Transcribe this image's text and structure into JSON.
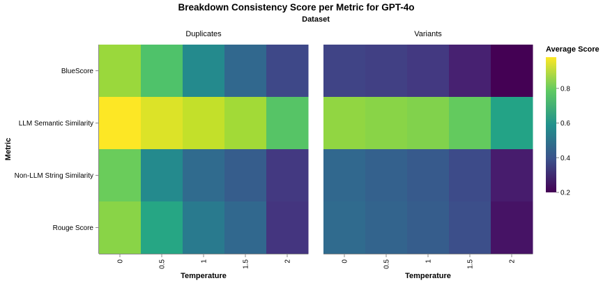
{
  "chart_data": {
    "type": "heatmap",
    "title": "Breakdown Consistency Score per Metric for GPT-4o",
    "column_header": "Dataset",
    "xlabel": "Temperature",
    "ylabel": "Metric",
    "x": [
      "0",
      "0.5",
      "1",
      "1.5",
      "2"
    ],
    "y": [
      "BlueScore",
      "LLM Semantic Similarity",
      "Non-LLM String Similarity",
      "Rouge Score"
    ],
    "facets": [
      {
        "name": "Duplicates",
        "values": [
          [
            0.86,
            0.76,
            0.57,
            0.46,
            0.37
          ],
          [
            0.98,
            0.94,
            0.91,
            0.87,
            0.77
          ],
          [
            0.8,
            0.57,
            0.47,
            0.43,
            0.33
          ],
          [
            0.84,
            0.66,
            0.52,
            0.46,
            0.32
          ]
        ]
      },
      {
        "name": "Variants",
        "values": [
          [
            0.36,
            0.35,
            0.33,
            0.27,
            0.2
          ],
          [
            0.85,
            0.84,
            0.83,
            0.79,
            0.65
          ],
          [
            0.46,
            0.44,
            0.42,
            0.38,
            0.26
          ],
          [
            0.47,
            0.45,
            0.43,
            0.39,
            0.24
          ]
        ]
      }
    ],
    "legend": {
      "title": "Average Score",
      "ticks": [
        "0.2",
        "0.4",
        "0.6",
        "0.8"
      ],
      "domain": [
        0.2,
        0.98
      ],
      "placement": "right"
    },
    "colormap": "viridis"
  }
}
